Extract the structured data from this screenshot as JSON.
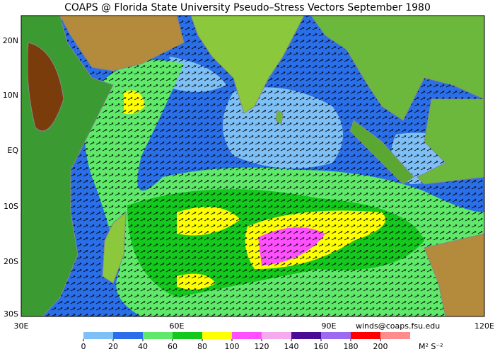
{
  "title": "COAPS @ Florida State University Pseudo–Stress Vectors  September 1980",
  "map": {
    "lat_labels": [
      "20N",
      "10N",
      "EQ",
      "10S",
      "20S",
      "30S"
    ],
    "lon_labels": [
      "30E",
      "60E",
      "90E",
      "120E"
    ]
  },
  "credit": "winds@coaps.fsu.edu",
  "colorbar": {
    "ticks": [
      0,
      20,
      40,
      60,
      80,
      100,
      120,
      140,
      160,
      180,
      200
    ],
    "colors": [
      "#7ec0f5",
      "#2a6ee8",
      "#5fe86a",
      "#14c81e",
      "#ffff00",
      "#ff50ff",
      "#f5aaf0",
      "#4b0a96",
      "#9b6af0",
      "#ff0000",
      "#ff8c8c"
    ],
    "unit": "M² S⁻²"
  }
}
